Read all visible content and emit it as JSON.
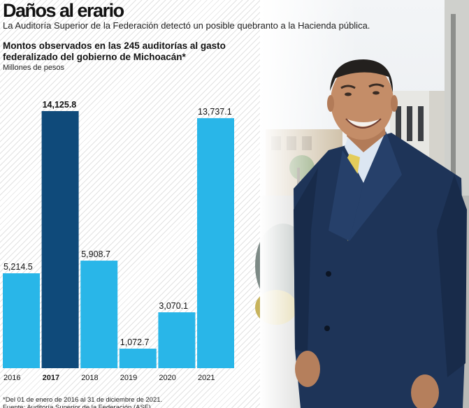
{
  "header": {
    "title": "Daños al erario",
    "subtitle": "La Auditoría Superior de la Federación detectó un posible quebranto a la Hacienda pública."
  },
  "chart_data": {
    "type": "bar",
    "title": "Montos observados en las 245 auditorías al gasto federalizado del gobierno de Michoacán*",
    "ylabel": "Millones de pesos",
    "xlabel": "",
    "categories": [
      "2016",
      "2017",
      "2018",
      "2019",
      "2020",
      "2021"
    ],
    "values": [
      5214.5,
      14125.8,
      5908.7,
      1072.7,
      3070.1,
      13737.1
    ],
    "value_labels": [
      "5,214.5",
      "14,125.8",
      "5,908.7",
      "1,072.7",
      "3,070.1",
      "13,737.1"
    ],
    "highlight_index": 1,
    "ylim": [
      0,
      14125.8
    ],
    "grid": false,
    "colors": {
      "bar": "#29b6e8",
      "highlight": "#0f4a7a"
    }
  },
  "footer": {
    "footnote": "*Del 01 de enero de 2016 al 31 de diciembre de 2021.",
    "source": "Fuente: Auditoría Superior de la Federación (ASF)."
  }
}
